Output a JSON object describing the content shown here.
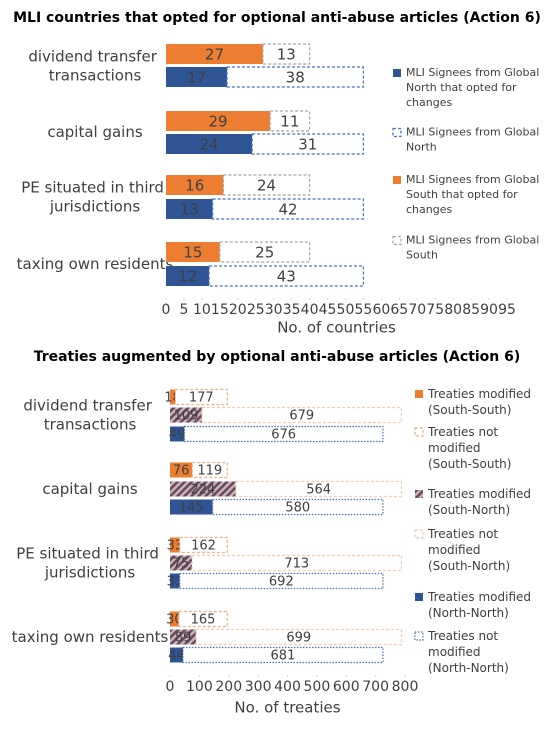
{
  "chart_data": [
    {
      "type": "bar",
      "orientation": "horizontal",
      "title": "MLI countries that opted for optional anti-abuse articles (Action 6)",
      "categories": [
        "dividend transfer transactions",
        "capital gains",
        "PE situated in third jurisdictions",
        "taxing own residents"
      ],
      "series": [
        {
          "name": "MLI Signees from Global North that opted for changes",
          "color": "#2f5597",
          "style": "solid",
          "values": [
            17,
            24,
            13,
            12
          ]
        },
        {
          "name": "MLI Signees from Global North",
          "color": "#4472c4",
          "style": "dashed",
          "values": [
            38,
            31,
            42,
            43
          ]
        },
        {
          "name": "MLI Signees from Global South that opted for changes",
          "color": "#ed7d31",
          "style": "solid",
          "values": [
            27,
            29,
            16,
            15
          ]
        },
        {
          "name": "MLI Signees from Global South",
          "color": "#a5a5a5",
          "style": "dashed",
          "values": [
            13,
            11,
            24,
            25
          ]
        }
      ],
      "xlim": [
        0,
        95
      ],
      "xticks": [
        0,
        5,
        10,
        15,
        20,
        25,
        30,
        35,
        40,
        45,
        50,
        55,
        60,
        65,
        70,
        75,
        80,
        85,
        90,
        95
      ],
      "xlabel": "No. of countries",
      "legend": "right"
    },
    {
      "type": "bar",
      "orientation": "horizontal",
      "title": "Treaties augmented by optional anti-abuse articles (Action 6)",
      "categories": [
        "dividend transfer transactions",
        "capital gains",
        "PE situated in third jurisdictions",
        "taxing own residents"
      ],
      "series": [
        {
          "name": "Treaties modified (South-South)",
          "color": "#ed7d31",
          "style": "solid",
          "values": [
            18,
            76,
            33,
            30
          ]
        },
        {
          "name": "Treaties not modified (South-South)",
          "color": "#f4b183",
          "style": "dashed",
          "values": [
            177,
            119,
            162,
            165
          ]
        },
        {
          "name": "Treaties modified (South-North)",
          "color": "#7f5f6f",
          "style": "hatched",
          "values": [
            109,
            224,
            75,
            89
          ]
        },
        {
          "name": "Treaties not modified (South-North)",
          "color": "#f8cbad",
          "style": "dashed",
          "values": [
            679,
            564,
            713,
            699
          ]
        },
        {
          "name": "Treaties modified (North-North)",
          "color": "#2f5597",
          "style": "solid",
          "values": [
            49,
            145,
            33,
            44
          ]
        },
        {
          "name": "Treaties not modified (North-North)",
          "color": "#4472c4",
          "style": "dotted",
          "values": [
            676,
            580,
            692,
            681
          ]
        }
      ],
      "xlim": [
        0,
        800
      ],
      "xticks": [
        0,
        100,
        200,
        300,
        400,
        500,
        600,
        700,
        800
      ],
      "xlabel": "No. of treaties",
      "legend": "right"
    }
  ]
}
